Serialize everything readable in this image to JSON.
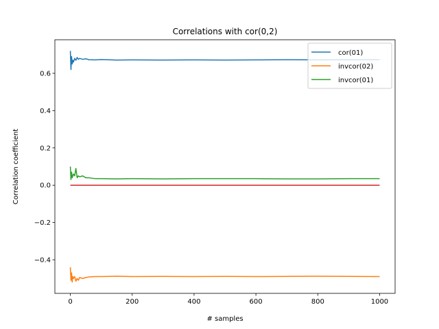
{
  "chart_data": {
    "type": "line",
    "title": "Correlations with cor(0,2)",
    "xlabel": "# samples",
    "ylabel": "Correlation coefficient",
    "xlim": [
      -50,
      1050
    ],
    "ylim": [
      -0.58,
      0.78
    ],
    "xticks": [
      0,
      200,
      400,
      600,
      800,
      1000
    ],
    "yticks": [
      -0.4,
      -0.2,
      0.0,
      0.2,
      0.4,
      0.6
    ],
    "xtick_labels": [
      "0",
      "200",
      "400",
      "600",
      "800",
      "1000"
    ],
    "ytick_labels": [
      "−0.4",
      "−0.2",
      "0.0",
      "0.2",
      "0.4",
      "0.6"
    ],
    "grid": false,
    "legend_position": "top-right",
    "series": [
      {
        "name": "cor(01)",
        "color": "#1f77b4",
        "in_legend": true,
        "x": [
          0,
          2,
          4,
          6,
          8,
          10,
          14,
          18,
          22,
          26,
          30,
          40,
          50,
          60,
          80,
          100,
          150,
          200,
          300,
          400,
          500,
          600,
          700,
          800,
          900,
          1000
        ],
        "y": [
          0.72,
          0.62,
          0.69,
          0.65,
          0.67,
          0.66,
          0.68,
          0.67,
          0.685,
          0.675,
          0.68,
          0.675,
          0.678,
          0.673,
          0.672,
          0.674,
          0.671,
          0.672,
          0.671,
          0.672,
          0.671,
          0.672,
          0.673,
          0.672,
          0.673,
          0.673
        ]
      },
      {
        "name": "invcor(02)",
        "color": "#ff7f0e",
        "in_legend": true,
        "x": [
          0,
          2,
          4,
          6,
          8,
          10,
          14,
          18,
          22,
          26,
          30,
          40,
          50,
          60,
          80,
          100,
          150,
          200,
          300,
          400,
          500,
          600,
          700,
          800,
          900,
          1000
        ],
        "y": [
          -0.44,
          -0.51,
          -0.47,
          -0.52,
          -0.49,
          -0.5,
          -0.49,
          -0.515,
          -0.5,
          -0.51,
          -0.495,
          -0.5,
          -0.495,
          -0.492,
          -0.49,
          -0.49,
          -0.488,
          -0.49,
          -0.489,
          -0.49,
          -0.489,
          -0.49,
          -0.489,
          -0.488,
          -0.489,
          -0.49
        ]
      },
      {
        "name": "invcor(01)",
        "color": "#2ca02c",
        "in_legend": true,
        "x": [
          0,
          2,
          4,
          6,
          8,
          10,
          14,
          18,
          22,
          26,
          30,
          40,
          50,
          60,
          80,
          100,
          150,
          200,
          300,
          400,
          500,
          600,
          700,
          800,
          900,
          1000
        ],
        "y": [
          0.1,
          0.03,
          0.07,
          0.04,
          0.05,
          0.06,
          0.05,
          0.09,
          0.04,
          0.05,
          0.045,
          0.05,
          0.04,
          0.04,
          0.035,
          0.035,
          0.034,
          0.035,
          0.034,
          0.035,
          0.035,
          0.035,
          0.034,
          0.034,
          0.035,
          0.035
        ]
      },
      {
        "name": "",
        "color": "#d62728",
        "in_legend": false,
        "x": [
          0,
          1000
        ],
        "y": [
          0.0,
          0.0
        ]
      }
    ]
  }
}
